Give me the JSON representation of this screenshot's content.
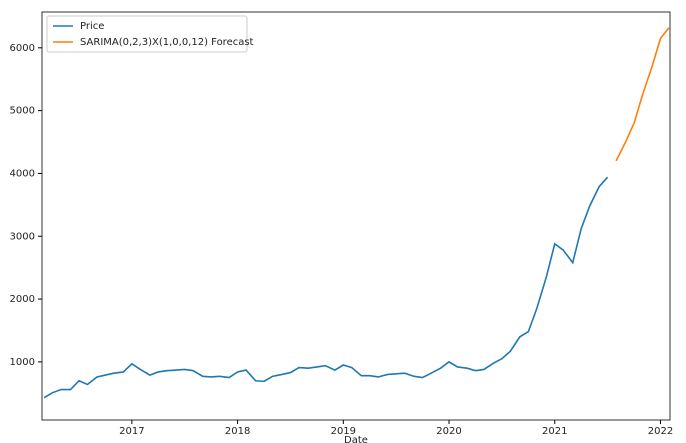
{
  "chart_data": {
    "type": "line",
    "x_label": "Date",
    "xlim": [
      2016.15,
      2022.09
    ],
    "ylim": [
      75,
      6570
    ],
    "xticks": [
      2017,
      2018,
      2019,
      2020,
      2021,
      2022
    ],
    "yticks": [
      1000,
      2000,
      3000,
      4000,
      5000,
      6000
    ],
    "legend": "upper left",
    "series": [
      {
        "name": "Price",
        "color": "#1f77b4",
        "x": [
          2016.17,
          2016.25,
          2016.33,
          2016.42,
          2016.5,
          2016.58,
          2016.67,
          2016.75,
          2016.83,
          2016.92,
          2017,
          2017.08,
          2017.17,
          2017.25,
          2017.33,
          2017.42,
          2017.5,
          2017.58,
          2017.67,
          2017.75,
          2017.83,
          2017.92,
          2018,
          2018.08,
          2018.17,
          2018.25,
          2018.33,
          2018.42,
          2018.5,
          2018.58,
          2018.67,
          2018.75,
          2018.83,
          2018.92,
          2019,
          2019.08,
          2019.17,
          2019.25,
          2019.33,
          2019.42,
          2019.5,
          2019.58,
          2019.67,
          2019.75,
          2019.83,
          2019.92,
          2020,
          2020.08,
          2020.17,
          2020.25,
          2020.33,
          2020.42,
          2020.5,
          2020.58,
          2020.67,
          2020.75,
          2020.83,
          2020.92,
          2021,
          2021.08,
          2021.17,
          2021.25,
          2021.33,
          2021.42,
          2021.5
        ],
        "values": [
          430,
          510,
          560,
          560,
          700,
          640,
          760,
          790,
          820,
          840,
          970,
          880,
          790,
          840,
          860,
          870,
          880,
          860,
          770,
          760,
          770,
          750,
          840,
          870,
          700,
          690,
          770,
          800,
          830,
          910,
          900,
          920,
          940,
          870,
          950,
          910,
          780,
          780,
          760,
          800,
          810,
          820,
          770,
          750,
          820,
          900,
          1000,
          920,
          900,
          860,
          880,
          980,
          1050,
          1170,
          1400,
          1480,
          1850,
          2350,
          2880,
          2780,
          2580,
          3120,
          3480,
          3790,
          3940
        ]
      },
      {
        "name": "SARIMA(0,2,3)X(1,0,0,12) Forecast",
        "color": "#ff7f0e",
        "x": [
          2021.58,
          2021.67,
          2021.75,
          2021.83,
          2021.92,
          2022,
          2022.08
        ],
        "values": [
          4200,
          4500,
          4800,
          5250,
          5700,
          6150,
          6320
        ]
      }
    ]
  }
}
